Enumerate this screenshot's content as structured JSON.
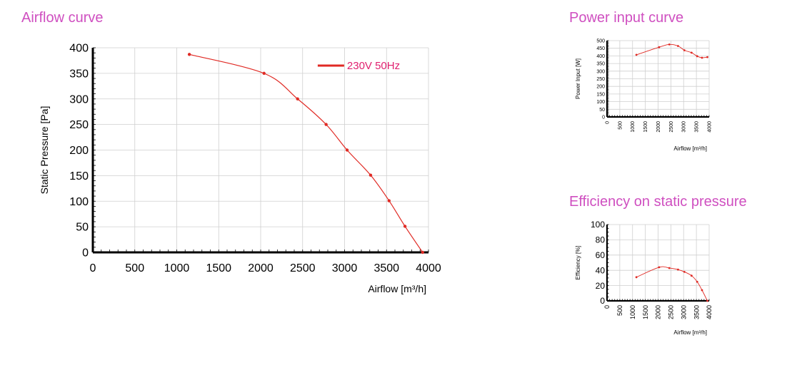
{
  "page": {
    "main_title": "Airflow curve",
    "power_title": "Power input curve",
    "efficiency_title": "Efficiency on static pressure"
  },
  "colors": {
    "title": "#cf4fc0",
    "series": "#e02a24",
    "legend_text": "#e0206f",
    "grid": "#cfcfcf"
  },
  "chart_data": [
    {
      "type": "line",
      "title": "Airflow curve",
      "xlabel": "Airflow [m³/h]",
      "ylabel": "Static Pressure [Pa]",
      "xlim": [
        0,
        4000
      ],
      "ylim": [
        0,
        400
      ],
      "xticks": [
        0,
        500,
        1000,
        1500,
        2000,
        2500,
        3000,
        3500,
        4000
      ],
      "yticks": [
        0,
        50,
        100,
        150,
        200,
        250,
        300,
        350,
        400
      ],
      "grid": true,
      "legend_placement": "top-right",
      "series": [
        {
          "name": "230V 50Hz",
          "x": [
            1150,
            2040,
            2440,
            2780,
            3030,
            3310,
            3530,
            3720,
            3930
          ],
          "y": [
            387,
            350,
            300,
            250,
            200,
            151,
            101,
            51,
            0
          ]
        }
      ]
    },
    {
      "type": "line",
      "title": "Power input curve",
      "xlabel": "Airflow [m³/h]",
      "ylabel": "Power Input [W]",
      "xlim": [
        0,
        4000
      ],
      "ylim": [
        0,
        500
      ],
      "xticks": [
        0,
        500,
        1000,
        1500,
        2000,
        2500,
        3000,
        3500,
        4000
      ],
      "yticks": [
        0,
        50,
        100,
        150,
        200,
        250,
        300,
        350,
        400,
        450,
        500
      ],
      "grid": true,
      "series": [
        {
          "x": [
            1150,
            2040,
            2440,
            2780,
            3030,
            3310,
            3530,
            3720,
            3930
          ],
          "y": [
            407,
            457,
            475,
            465,
            437,
            421,
            398,
            388,
            392
          ]
        }
      ]
    },
    {
      "type": "line",
      "title": "Efficiency on static pressure",
      "xlabel": "Airflow [m³/h]",
      "ylabel": "Efficiency [%]",
      "xlim": [
        0,
        4000
      ],
      "ylim": [
        0,
        100
      ],
      "xticks": [
        0,
        500,
        1000,
        1500,
        2000,
        2500,
        3000,
        3500,
        4000
      ],
      "yticks": [
        0,
        20,
        40,
        60,
        80,
        100
      ],
      "grid": true,
      "series": [
        {
          "x": [
            1150,
            2040,
            2440,
            2780,
            3030,
            3310,
            3530,
            3720,
            3930
          ],
          "y": [
            31,
            44,
            43,
            41,
            38,
            33,
            25,
            14,
            0
          ]
        }
      ]
    }
  ]
}
